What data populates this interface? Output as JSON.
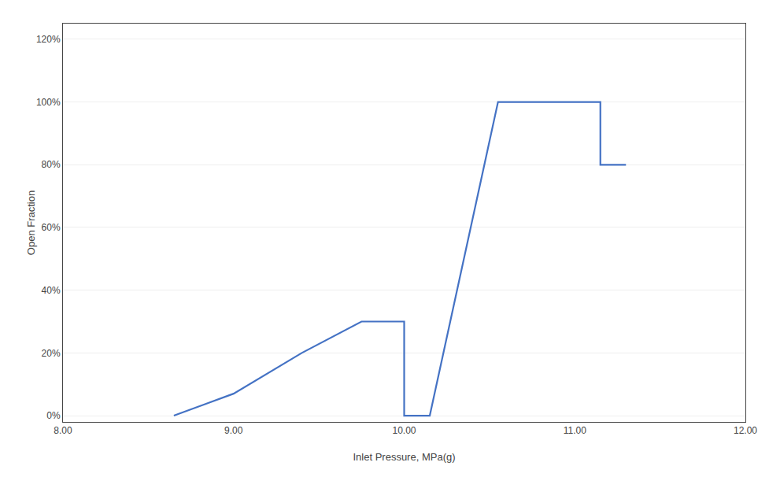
{
  "chart_data": {
    "type": "line",
    "x": [
      8.65,
      9.0,
      9.4,
      9.75,
      10.0,
      10.0,
      10.15,
      10.55,
      11.15,
      11.15,
      11.3,
      11.3
    ],
    "values": [
      0.0,
      0.07,
      0.2,
      0.3,
      0.3,
      0.0,
      0.0,
      1.0,
      1.0,
      0.8,
      0.8,
      0.8
    ],
    "color": "#4472C4",
    "xlabel": "Inlet Pressure, MPa(g)",
    "ylabel": "Open Fraction",
    "xlim": [
      8.0,
      12.0
    ],
    "ylim": [
      -0.02,
      1.25
    ],
    "xticks": [
      {
        "value": 8.0,
        "label": "8.00"
      },
      {
        "value": 9.0,
        "label": "9.00"
      },
      {
        "value": 10.0,
        "label": "10.00"
      },
      {
        "value": 11.0,
        "label": "11.00"
      },
      {
        "value": 12.0,
        "label": "12.00"
      }
    ],
    "yticks": [
      {
        "value": 0.0,
        "label": "0%"
      },
      {
        "value": 0.2,
        "label": "20%"
      },
      {
        "value": 0.4,
        "label": "40%"
      },
      {
        "value": 0.6,
        "label": "60%"
      },
      {
        "value": 0.8,
        "label": "80%"
      },
      {
        "value": 1.0,
        "label": "100%"
      },
      {
        "value": 1.2,
        "label": "120%"
      }
    ],
    "grid": "y"
  }
}
